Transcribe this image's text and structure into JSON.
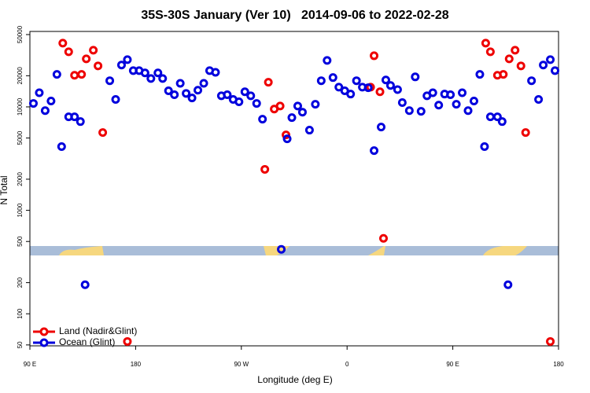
{
  "chart_data": {
    "type": "scatter",
    "title": "35S-30S January (Ver 10)   2014-09-06 to 2022-02-28",
    "x_label": "Longitude (deg E)",
    "y_label": "N Total",
    "log_y": true,
    "legend": "bottom-left",
    "xlim": [
      90,
      540
    ],
    "xticks": [
      {
        "value": 90,
        "label": "90 E"
      },
      180,
      {
        "value": 270,
        "label": "90 W"
      },
      {
        "value": 360,
        "label": "0"
      },
      {
        "value": 450,
        "label": "90 E"
      },
      {
        "value": 540,
        "label": "180"
      }
    ],
    "ylim": [
      49,
      53600
    ],
    "yticks": [
      50,
      100,
      200,
      500,
      1000,
      2000,
      5000,
      10000,
      20000,
      50000
    ],
    "series": [
      {
        "name": "Land (Nadir&Glint)",
        "color": "#ee0000",
        "x": [
          118,
          123,
          128,
          134,
          138,
          144,
          148,
          152,
          173,
          290,
          293,
          298,
          303,
          308,
          380,
          383,
          388,
          391,
          478,
          482,
          488,
          493,
          498,
          503,
          508,
          512,
          533
        ],
        "values": [
          41300,
          34100,
          20200,
          20600,
          29100,
          35300,
          24900,
          5650,
          54,
          2490,
          17300,
          9530,
          10200,
          5360,
          15500,
          31200,
          14000,
          536,
          41300,
          34100,
          20200,
          20600,
          29100,
          35300,
          24900,
          5650,
          54
        ]
      },
      {
        "name": "Ocean (Glint)",
        "color": "#0000dd",
        "x": [
          93,
          98,
          103,
          108,
          113,
          117,
          123,
          128,
          133,
          137,
          158,
          163,
          168,
          173,
          178,
          183,
          188,
          193,
          199,
          203,
          208,
          213,
          218,
          223,
          228,
          233,
          238,
          243,
          248,
          253,
          258,
          263,
          268,
          273,
          278,
          283,
          288,
          304,
          309,
          313,
          318,
          322,
          328,
          333,
          338,
          343,
          348,
          353,
          358,
          363,
          368,
          373,
          378,
          383,
          389,
          393,
          397,
          403,
          407,
          413,
          418,
          423,
          428,
          433,
          438,
          443,
          448,
          453,
          458,
          463,
          468,
          473,
          477,
          482,
          488,
          492,
          497,
          517,
          523,
          527,
          533,
          537
        ],
        "values": [
          10800,
          13700,
          9200,
          11400,
          20600,
          4130,
          8010,
          8010,
          7210,
          191,
          17900,
          11800,
          25400,
          28600,
          22400,
          22400,
          21300,
          18800,
          21300,
          18800,
          14300,
          13100,
          16900,
          13500,
          12200,
          14500,
          16900,
          22400,
          21600,
          12800,
          13100,
          11800,
          11200,
          14000,
          12800,
          10800,
          7600,
          420,
          4910,
          7870,
          10200,
          8890,
          5960,
          10600,
          17900,
          28100,
          19200,
          15500,
          14300,
          13300,
          17900,
          15500,
          15300,
          3780,
          6380,
          18200,
          16100,
          14700,
          11000,
          9200,
          19500,
          9060,
          12800,
          13700,
          10400,
          13300,
          13100,
          10600,
          13700,
          9200,
          11400,
          20600,
          4130,
          8010,
          8010,
          7210,
          191,
          17900,
          11800,
          25400,
          28600,
          22400
        ]
      }
    ]
  }
}
